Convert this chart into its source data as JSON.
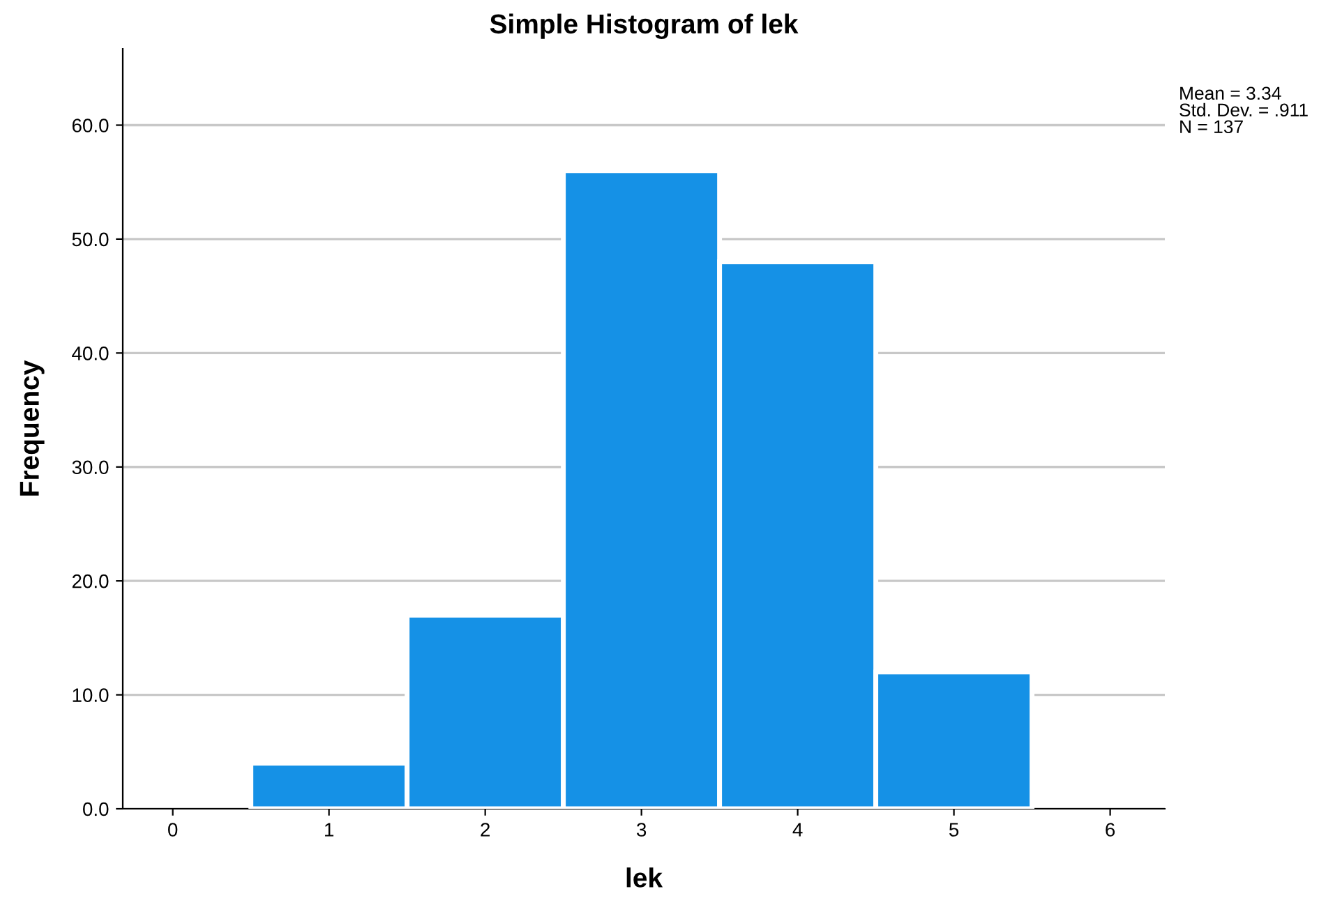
{
  "chart_data": {
    "type": "histogram",
    "title": "Simple Histogram of lek",
    "xlabel": "lek",
    "ylabel": "Frequency",
    "bins": [
      0.5,
      1.5,
      2.5,
      3.5,
      4.5,
      5.5
    ],
    "values": [
      4,
      17,
      56,
      48,
      12
    ],
    "color": "#1591e6",
    "xlim": [
      -0.32,
      6.35
    ],
    "xticks": [
      0,
      1,
      2,
      3,
      4,
      5,
      6
    ],
    "ylim": [
      0,
      66.7
    ],
    "yticks": [
      {
        "value": 0,
        "label": "0.0"
      },
      {
        "value": 10,
        "label": "10.0"
      },
      {
        "value": 20,
        "label": "20.0"
      },
      {
        "value": 30,
        "label": "30.0"
      },
      {
        "value": 40,
        "label": "40.0"
      },
      {
        "value": 50,
        "label": "50.0"
      },
      {
        "value": 60,
        "label": "60.0"
      }
    ],
    "grid": "y",
    "annotations": [
      "Mean = 3.34",
      "Std. Dev. = .911",
      "N = 137"
    ]
  }
}
